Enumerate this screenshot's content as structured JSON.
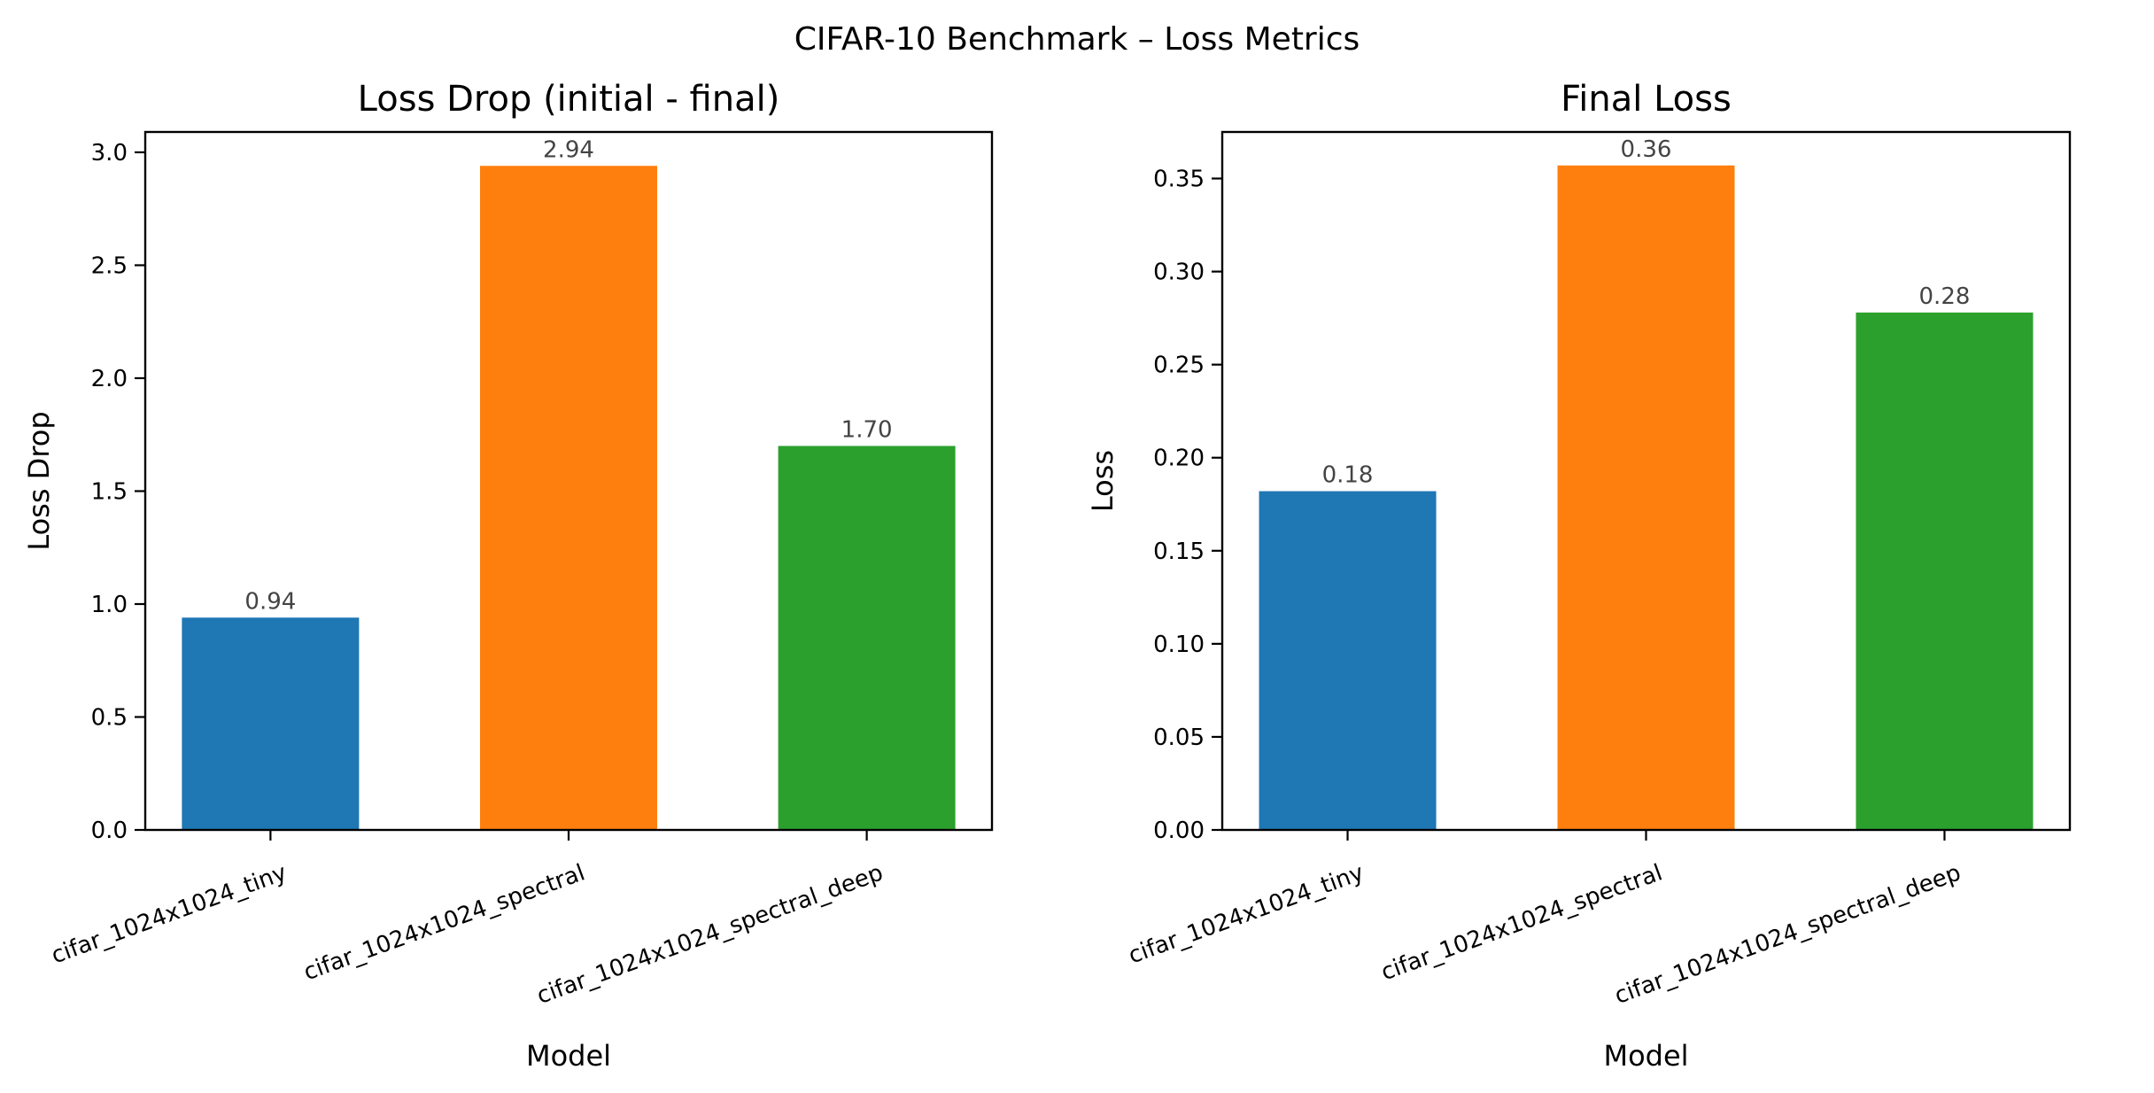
{
  "figure_title": "CIFAR-10 Benchmark – Loss Metrics",
  "chart_data": [
    {
      "type": "bar",
      "title": "Loss Drop (initial - final)",
      "xlabel": "Model",
      "ylabel": "Loss Drop",
      "categories": [
        "cifar_1024x1024_tiny",
        "cifar_1024x1024_spectral",
        "cifar_1024x1024_spectral_deep"
      ],
      "values": [
        0.94,
        2.94,
        1.7
      ],
      "value_labels": [
        "0.94",
        "2.94",
        "1.70"
      ],
      "colors": [
        "#1f77b4",
        "#ff7f0e",
        "#2ca02c"
      ],
      "ylim": [
        0,
        3.09
      ],
      "yticks": [
        0.0,
        0.5,
        1.0,
        1.5,
        2.0,
        2.5,
        3.0
      ],
      "ytick_labels": [
        "0.0",
        "0.5",
        "1.0",
        "1.5",
        "2.0",
        "2.5",
        "3.0"
      ],
      "grid": false,
      "legend": "none"
    },
    {
      "type": "bar",
      "title": "Final Loss",
      "xlabel": "Model",
      "ylabel": "Loss",
      "categories": [
        "cifar_1024x1024_tiny",
        "cifar_1024x1024_spectral",
        "cifar_1024x1024_spectral_deep"
      ],
      "values": [
        0.182,
        0.357,
        0.278
      ],
      "value_labels": [
        "0.18",
        "0.36",
        "0.28"
      ],
      "colors": [
        "#1f77b4",
        "#ff7f0e",
        "#2ca02c"
      ],
      "ylim": [
        0,
        0.375
      ],
      "yticks": [
        0.0,
        0.05,
        0.1,
        0.15,
        0.2,
        0.25,
        0.3,
        0.35
      ],
      "ytick_labels": [
        "0.00",
        "0.05",
        "0.10",
        "0.15",
        "0.20",
        "0.25",
        "0.30",
        "0.35"
      ],
      "grid": false,
      "legend": "none"
    }
  ]
}
